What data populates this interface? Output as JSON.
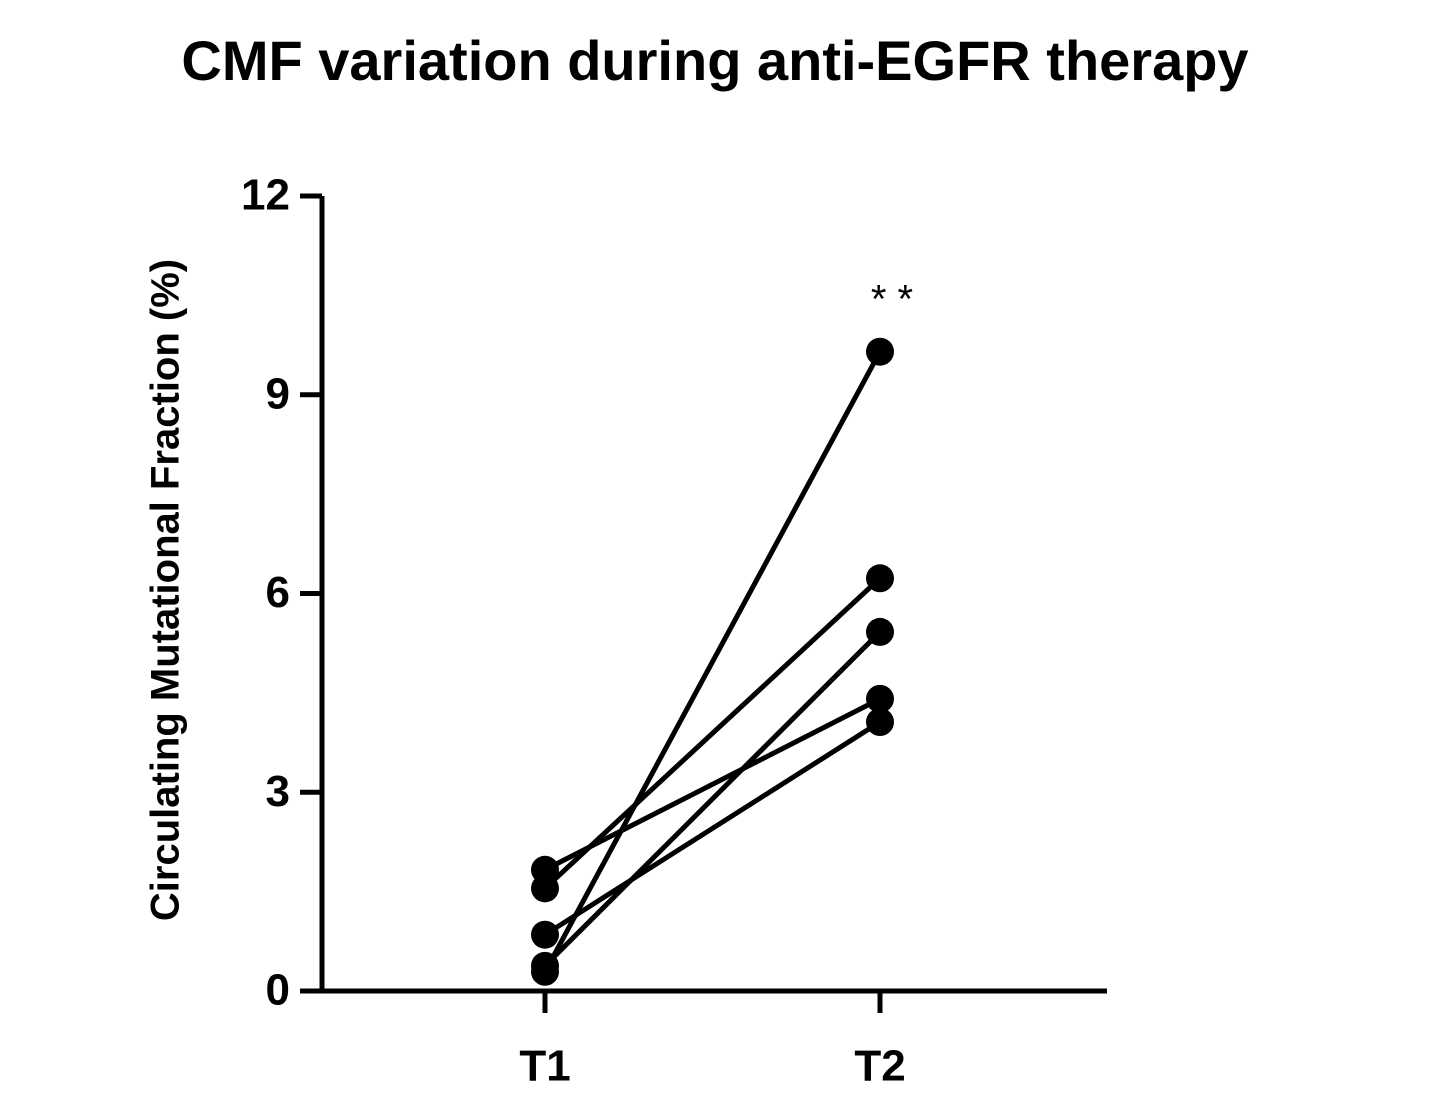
{
  "chart_data": {
    "type": "paired-line",
    "title": "CMF variation during anti-EGFR therapy",
    "y_label": "Circulating Mutational  Fraction (%)",
    "annotation": "* *",
    "categories": [
      "T1",
      "T2"
    ],
    "color": "#000000",
    "series": [
      {
        "values": [
          0.29,
          9.65
        ]
      },
      {
        "values": [
          1.55,
          6.23
        ]
      },
      {
        "values": [
          0.38,
          5.42
        ]
      },
      {
        "values": [
          1.83,
          4.41
        ]
      },
      {
        "values": [
          0.85,
          4.06
        ]
      }
    ],
    "ylim": [
      0,
      12
    ],
    "yticks": [
      0,
      3,
      6,
      9,
      12
    ],
    "grid": false
  }
}
